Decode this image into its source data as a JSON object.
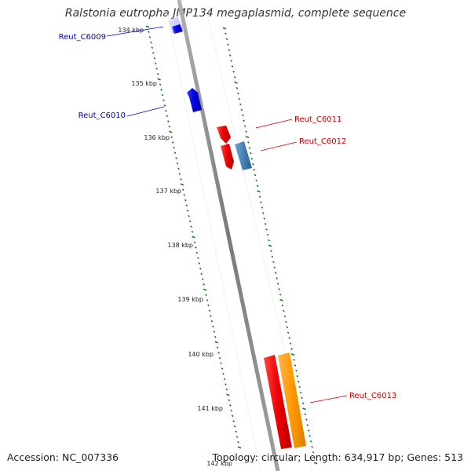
{
  "title": "Ralstonia eutropha JMP134 megaplasmid, complete sequence",
  "accession": "Accession: NC_007336",
  "summary": "Topology: circular; Length: 634,917 bp; Genes: 513",
  "colors": {
    "backbone": "#8a8a8a",
    "tick": "#1a7a1a",
    "forward_gene": "#0000dd",
    "reverse_gene": "#ee0000",
    "steelblue_gene": "#4682b4",
    "orange_gene": "#ff9900",
    "label_blue": "#0000cc",
    "label_red": "#cc0000"
  },
  "scale_labels": [
    "134 kbp",
    "135 kbp",
    "136 kbp",
    "137 kbp",
    "138 kbp",
    "139 kbp",
    "140 kbp",
    "141 kbp",
    "142 kbp"
  ],
  "gene_labels": [
    {
      "id": "gene-label-reut-c6009",
      "text": "Reut_C6009",
      "color": "label_blue"
    },
    {
      "id": "gene-label-reut-c6010",
      "text": "Reut_C6010",
      "color": "label_blue"
    },
    {
      "id": "gene-label-reut-c6011",
      "text": "Reut_C6011",
      "color": "label_red"
    },
    {
      "id": "gene-label-reut-c6012",
      "text": "Reut_C6012",
      "color": "label_red"
    },
    {
      "id": "gene-label-reut-c6013",
      "text": "Reut_C6013",
      "color": "label_red"
    }
  ]
}
